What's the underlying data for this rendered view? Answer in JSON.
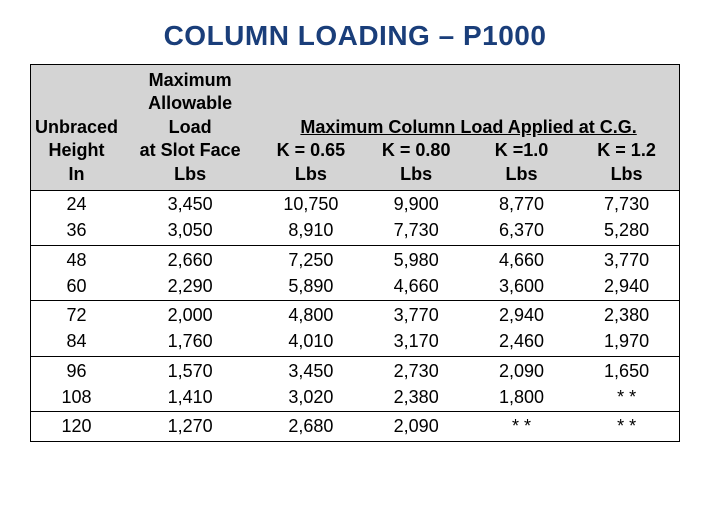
{
  "title": "COLUMN LOADING – P1000",
  "title_color": "#1a3e7a",
  "header": {
    "col1_lines": [
      "Unbraced",
      "Height",
      "In"
    ],
    "col2_lines": [
      "Maximum",
      "Allowable Load",
      "at Slot Face",
      "Lbs"
    ],
    "span_label": "Maximum Column Load Applied at C.G.",
    "k_labels": [
      "K = 0.65",
      "K = 0.80",
      "K =1.0",
      "K = 1.2"
    ],
    "unit": "Lbs"
  },
  "groups": [
    [
      {
        "h": "24",
        "slot": "3,450",
        "k065": "10,750",
        "k080": "9,900",
        "k10": "8,770",
        "k12": "7,730"
      },
      {
        "h": "36",
        "slot": "3,050",
        "k065": "8,910",
        "k080": "7,730",
        "k10": "6,370",
        "k12": "5,280"
      }
    ],
    [
      {
        "h": "48",
        "slot": "2,660",
        "k065": "7,250",
        "k080": "5,980",
        "k10": "4,660",
        "k12": "3,770"
      },
      {
        "h": "60",
        "slot": "2,290",
        "k065": "5,890",
        "k080": "4,660",
        "k10": "3,600",
        "k12": "2,940"
      }
    ],
    [
      {
        "h": "72",
        "slot": "2,000",
        "k065": "4,800",
        "k080": "3,770",
        "k10": "2,940",
        "k12": "2,380"
      },
      {
        "h": "84",
        "slot": "1,760",
        "k065": "4,010",
        "k080": "3,170",
        "k10": "2,460",
        "k12": "1,970"
      }
    ],
    [
      {
        "h": "96",
        "slot": "1,570",
        "k065": "3,450",
        "k080": "2,730",
        "k10": "2,090",
        "k12": "1,650"
      },
      {
        "h": "108",
        "slot": "1,410",
        "k065": "3,020",
        "k080": "2,380",
        "k10": "1,800",
        "k12": "* *"
      }
    ],
    [
      {
        "h": "120",
        "slot": "1,270",
        "k065": "2,680",
        "k080": "2,090",
        "k10": "* *",
        "k12": "* *"
      }
    ]
  ],
  "colors": {
    "header_bg": "#d4d4d4",
    "border": "#000000",
    "text": "#000000",
    "background": "#ffffff"
  },
  "typography": {
    "title_fontsize": 28,
    "header_fontsize": 18,
    "body_fontsize": 18,
    "font_family": "Arial Narrow"
  }
}
